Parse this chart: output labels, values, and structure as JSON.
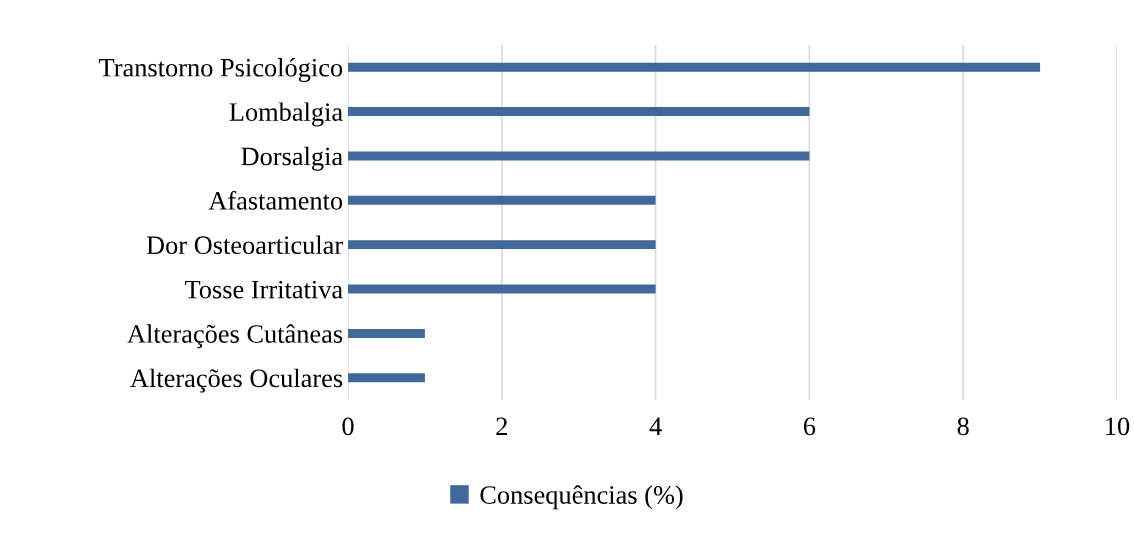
{
  "chart_data": {
    "type": "bar",
    "orientation": "horizontal",
    "categories": [
      "Transtorno Psicológico",
      "Lombalgia",
      "Dorsalgia",
      "Afastamento",
      "Dor Osteoarticular",
      "Tosse Irritativa",
      "Alterações Cutâneas",
      "Alterações Oculares"
    ],
    "series": [
      {
        "name": "Consequências (%)",
        "color": "#41689b",
        "values": [
          9,
          6,
          6,
          4,
          4,
          4,
          1,
          1
        ]
      }
    ],
    "xlim": [
      0,
      10
    ],
    "xticks": [
      0,
      2,
      4,
      6,
      8,
      10
    ],
    "grid": "x",
    "legend": "bottom"
  }
}
